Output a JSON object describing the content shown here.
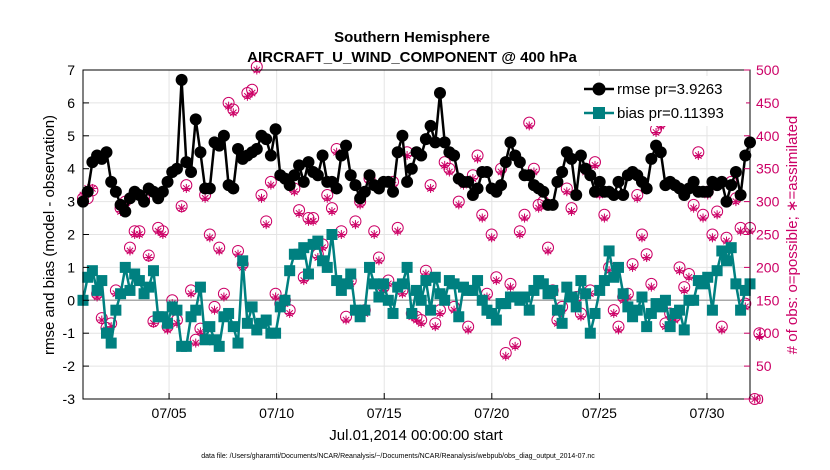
{
  "chart_data": {
    "type": "line",
    "title": "Southern Hemisphere",
    "subtitle": "AIRCRAFT_U_WIND_COMPONENT @ 400 hPa",
    "xlabel": "Jul.01,2014 00:00:00 start",
    "ylabel_left": "rmse and bias (model - observation)",
    "ylabel_right": "# of obs: o=possible; ∗=assimilated",
    "footnote": "data file: /Users/gharamti/Documents/NCAR/Reanalysis/~/Documents/NCAR/Reanalysis/webpub/obs_diag_output_2014-07.nc",
    "xlim": [
      1.0,
      32.0
    ],
    "ylim_left": [
      -3,
      7
    ],
    "ylim_right": [
      0,
      500
    ],
    "x_ticks": [
      {
        "value": 5,
        "label": "07/05"
      },
      {
        "value": 10,
        "label": "07/10"
      },
      {
        "value": 15,
        "label": "07/15"
      },
      {
        "value": 20,
        "label": "07/20"
      },
      {
        "value": 25,
        "label": "07/25"
      },
      {
        "value": 30,
        "label": "07/30"
      }
    ],
    "y_ticks_left": [
      "-3",
      "-2",
      "-1",
      "0",
      "1",
      "2",
      "3",
      "4",
      "5",
      "6",
      "7"
    ],
    "y_ticks_right": [
      "0",
      "50",
      "100",
      "150",
      "200",
      "250",
      "300",
      "350",
      "400",
      "450",
      "500"
    ],
    "grid": true,
    "legend_position": "top-right",
    "colors": {
      "rmse": "#000000",
      "bias": "#008080",
      "obs": "#cc0066",
      "zero_line": "#aaaaaa"
    },
    "series": [
      {
        "name": "rmse pr=3.9263",
        "marker": "circle",
        "axis": "left",
        "values": [
          3.0,
          3.3,
          4.2,
          4.4,
          4.3,
          4.5,
          3.6,
          3.3,
          2.9,
          2.7,
          3.1,
          3.3,
          3.2,
          3.0,
          3.4,
          3.3,
          3.1,
          3.3,
          3.6,
          3.9,
          4.0,
          6.7,
          4.2,
          3.9,
          5.5,
          4.5,
          3.4,
          3.4,
          4.8,
          4.7,
          5.0,
          3.5,
          3.4,
          4.6,
          4.3,
          4.4,
          4.5,
          4.6,
          5.0,
          4.9,
          4.4,
          5.2,
          3.8,
          3.7,
          3.5,
          3.8,
          4.1,
          3.6,
          4.2,
          3.9,
          3.8,
          4.4,
          3.6,
          3.6,
          3.4,
          4.4,
          4.7,
          3.8,
          3.5,
          3.1,
          3.3,
          3.8,
          3.5,
          3.4,
          3.6,
          3.6,
          3.3,
          4.5,
          5.0,
          3.6,
          4.0,
          4.5,
          4.4,
          4.9,
          5.3,
          4.8,
          6.3,
          4.8,
          4.5,
          4.4,
          3.7,
          3.6,
          3.6,
          3.2,
          3.4,
          3.9,
          3.9,
          3.4,
          3.3,
          3.5,
          4.2,
          4.8,
          4.4,
          4.2,
          3.8,
          3.8,
          3.5,
          3.4,
          3.3,
          2.9,
          2.9,
          3.6,
          3.9,
          4.5,
          4.3,
          3.2,
          4.4,
          4.0,
          3.8,
          3.3,
          3.6,
          3.3,
          3.3,
          3.2,
          3.6,
          3.2,
          3.8,
          3.9,
          3.8,
          3.6,
          3.4,
          4.3,
          4.7,
          4.5,
          3.5,
          3.6,
          3.5,
          3.4,
          3.2,
          3.4,
          3.6,
          3.3,
          3.3,
          3.3,
          3.6,
          3.5,
          3.6,
          3.0,
          3.5,
          3.9,
          3.2,
          4.4,
          4.8
        ]
      },
      {
        "name": "bias pr=0.11393",
        "marker": "square",
        "axis": "left",
        "values": [
          0.0,
          0.7,
          0.9,
          0.3,
          0.6,
          -1.0,
          -1.3,
          -0.3,
          0.2,
          1.0,
          0.3,
          0.8,
          0.6,
          0.2,
          0.4,
          0.9,
          -0.5,
          -0.5,
          -0.7,
          -0.2,
          -0.3,
          -1.4,
          -1.4,
          -0.5,
          -0.3,
          0.4,
          -1.2,
          -0.8,
          -1.2,
          -1.4,
          -0.5,
          -0.4,
          -0.8,
          -1.3,
          1.2,
          -0.7,
          -0.2,
          -0.9,
          -0.7,
          -0.6,
          -1.0,
          -1.0,
          -0.2,
          0.0,
          0.9,
          1.4,
          1.4,
          1.6,
          0.8,
          1.7,
          1.8,
          1.2,
          1.0,
          2.0,
          0.6,
          0.3,
          0.5,
          0.8,
          -0.3,
          -0.5,
          -0.3,
          1.0,
          0.5,
          0.1,
          0.5,
          0.0,
          -0.4,
          0.4,
          0.5,
          1.0,
          -0.4,
          0.3,
          0.0,
          0.6,
          -0.3,
          0.7,
          0.2,
          0.0,
          0.6,
          0.5,
          -0.5,
          0.4,
          0.3,
          0.3,
          0.6,
          0.0,
          -0.3,
          -0.4,
          -0.6,
          -0.1,
          -0.1,
          0.1,
          0.1,
          0.0,
          0.1,
          -0.3,
          0.3,
          0.6,
          0.5,
          0.2,
          0.3,
          -0.3,
          -0.7,
          0.4,
          0.1,
          -0.2,
          0.6,
          0.2,
          -1.0,
          -0.4,
          0.3,
          0.6,
          1.5,
          0.7,
          1.0,
          0.2,
          -0.2,
          -0.5,
          -0.3,
          0.1,
          -0.8,
          -0.4,
          -0.1,
          -0.2,
          0.0,
          -0.8,
          -0.4,
          -0.3,
          -0.9,
          0.0,
          0.0,
          0.6,
          0.5,
          0.7,
          -0.3,
          0.9,
          1.5,
          1.2,
          1.6,
          0.5,
          -0.3,
          0.3,
          0.5
        ]
      }
    ],
    "obs_possible": [
      305,
      305,
      317,
      160,
      123,
      108,
      115,
      165,
      290,
      300,
      230,
      255,
      255,
      305,
      218,
      118,
      260,
      255,
      110,
      150,
      120,
      293,
      325,
      165,
      90,
      107,
      310,
      250,
      140,
      230,
      160,
      450,
      440,
      225,
      205,
      465,
      470,
      505,
      310,
      270,
      330,
      160,
      145,
      150,
      135,
      320,
      287,
      185,
      275,
      275,
      220,
      235,
      310,
      290,
      380,
      255,
      125,
      180,
      270,
      300,
      135,
      335,
      255,
      215,
      170,
      180,
      330,
      260,
      165,
      375,
      130,
      125,
      120,
      195,
      325,
      115,
      135,
      360,
      350,
      140,
      300,
      330,
      110,
      340,
      370,
      280,
      160,
      250,
      185,
      350,
      70,
      175,
      85,
      255,
      280,
      420,
      350,
      295,
      300,
      230,
      165,
      120,
      140,
      320,
      290,
      155,
      130,
      350,
      165,
      360,
      315,
      280,
      200,
      135,
      110,
      155,
      160,
      205,
      310,
      250,
      220,
      175,
      410,
      420,
      115,
      130,
      125,
      200,
      170,
      190,
      295,
      375,
      280,
      315,
      250,
      285,
      110,
      245,
      330,
      305,
      260,
      145,
      260,
      0,
      100
    ],
    "obs_assimilated": [
      310,
      320,
      320,
      155,
      120,
      105,
      110,
      160,
      285,
      295,
      225,
      250,
      250,
      300,
      215,
      115,
      255,
      250,
      105,
      145,
      115,
      290,
      320,
      160,
      85,
      102,
      305,
      245,
      135,
      225,
      155,
      445,
      435,
      220,
      200,
      460,
      465,
      500,
      305,
      265,
      325,
      155,
      140,
      145,
      130,
      315,
      282,
      180,
      270,
      270,
      215,
      230,
      305,
      285,
      375,
      250,
      120,
      175,
      265,
      295,
      130,
      330,
      250,
      210,
      165,
      175,
      325,
      255,
      160,
      370,
      125,
      120,
      115,
      190,
      320,
      110,
      130,
      355,
      345,
      135,
      295,
      325,
      105,
      335,
      365,
      275,
      155,
      245,
      180,
      345,
      65,
      170,
      80,
      250,
      275,
      415,
      345,
      290,
      295,
      225,
      160,
      115,
      135,
      315,
      285,
      150,
      125,
      345,
      160,
      355,
      310,
      275,
      195,
      130,
      105,
      150,
      155,
      200,
      305,
      245,
      215,
      170,
      405,
      415,
      110,
      125,
      120,
      195,
      165,
      185,
      290,
      370,
      275,
      310,
      245,
      280,
      105,
      240,
      325,
      300,
      255,
      140,
      255,
      0,
      95
    ]
  }
}
